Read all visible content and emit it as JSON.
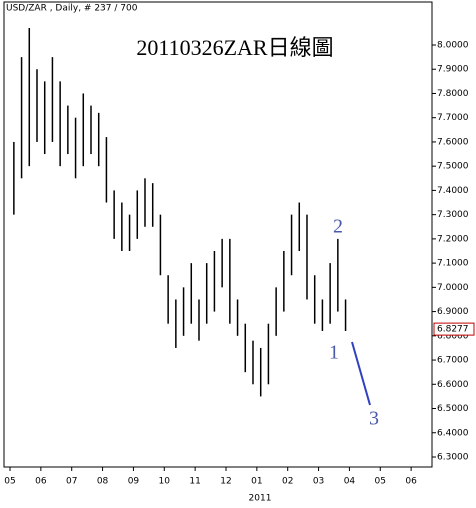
{
  "chart_data": {
    "type": "range",
    "header": "USD/ZAR , Daily, # 237 / 700",
    "title": "20110326ZAR日線圖",
    "xlabel": "2011",
    "categories": [
      "05",
      null,
      null,
      null,
      "06",
      null,
      null,
      null,
      "07",
      null,
      null,
      null,
      "08",
      null,
      null,
      null,
      "09",
      null,
      null,
      null,
      "10",
      null,
      null,
      null,
      "11",
      null,
      null,
      null,
      "12",
      null,
      null,
      null,
      "01",
      null,
      null,
      null,
      "02",
      null,
      null,
      null,
      "03",
      null,
      null,
      null,
      "04",
      null,
      null,
      null,
      "05",
      null,
      null,
      null,
      "06",
      null,
      null,
      null
    ],
    "high": [
      7.6,
      7.95,
      8.07,
      7.9,
      7.85,
      7.95,
      7.85,
      7.75,
      7.7,
      7.8,
      7.75,
      7.72,
      7.62,
      7.4,
      7.35,
      7.3,
      7.4,
      7.45,
      7.43,
      7.3,
      7.05,
      6.95,
      7.0,
      7.1,
      6.95,
      7.1,
      7.15,
      7.2,
      7.2,
      6.95,
      6.85,
      6.78,
      6.75,
      6.85,
      7.0,
      7.15,
      7.3,
      7.35,
      7.3,
      7.05,
      6.95,
      7.1,
      7.2,
      6.95,
      null,
      null,
      null,
      null,
      null,
      null,
      null,
      null,
      null,
      null,
      null,
      null
    ],
    "low": [
      7.3,
      7.45,
      7.5,
      7.6,
      7.55,
      7.6,
      7.5,
      7.55,
      7.45,
      7.5,
      7.55,
      7.5,
      7.35,
      7.2,
      7.15,
      7.15,
      7.2,
      7.25,
      7.25,
      7.05,
      6.85,
      6.75,
      6.8,
      6.85,
      6.78,
      6.85,
      6.9,
      7.0,
      6.85,
      6.8,
      6.65,
      6.6,
      6.55,
      6.6,
      6.8,
      6.9,
      7.05,
      7.15,
      6.95,
      6.85,
      6.82,
      6.85,
      6.9,
      6.82,
      null,
      null,
      null,
      null,
      null,
      null,
      null,
      null,
      null,
      null,
      null,
      null
    ],
    "color": "#000000",
    "ylim": [
      6.2587,
      8.1857
    ],
    "yticks": [
      {
        "value": 6.3,
        "label": "6.3000"
      },
      {
        "value": 6.4,
        "label": "6.4000"
      },
      {
        "value": 6.5,
        "label": "6.5000"
      },
      {
        "value": 6.6,
        "label": "6.6000"
      },
      {
        "value": 6.7,
        "label": "6.7000"
      },
      {
        "value": 6.8,
        "label": "6.8000"
      },
      {
        "value": 6.9,
        "label": "6.9000"
      },
      {
        "value": 7.0,
        "label": "7.0000"
      },
      {
        "value": 7.1,
        "label": "7.1000"
      },
      {
        "value": 7.2,
        "label": "7.2000"
      },
      {
        "value": 7.3,
        "label": "7.3000"
      },
      {
        "value": 7.4,
        "label": "7.4000"
      },
      {
        "value": 7.5,
        "label": "7.5000"
      },
      {
        "value": 7.6,
        "label": "7.6000"
      },
      {
        "value": 7.7,
        "label": "7.7000"
      },
      {
        "value": 7.8,
        "label": "7.8000"
      },
      {
        "value": 7.9,
        "label": "7.9000"
      },
      {
        "value": 8.0,
        "label": "8.0000"
      }
    ],
    "last_price": 6.8277,
    "annotations": [
      "1",
      "2",
      "3"
    ]
  }
}
